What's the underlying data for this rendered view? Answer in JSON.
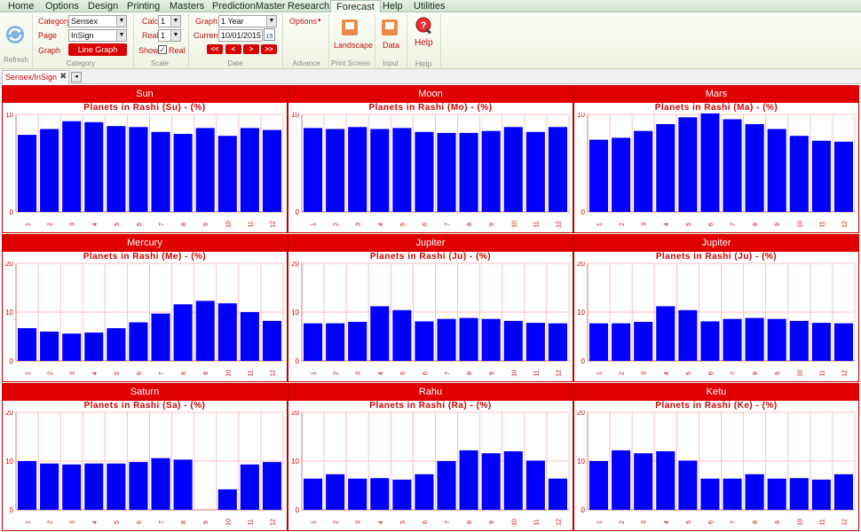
{
  "menu": {
    "items": [
      "Home",
      "Options",
      "Design",
      "Printing",
      "Masters",
      "PredictionMaster",
      "Research",
      "Forecast",
      "Help",
      "Utilities"
    ],
    "active": "Forecast"
  },
  "ribbon": {
    "refresh_label": "Refresh",
    "category": {
      "category_label": "Category",
      "category_value": "Sensex",
      "page_label": "Page",
      "page_value": "InSign",
      "graph_label": "Graph",
      "graph_button": "Line Graph",
      "group_label": "Category"
    },
    "scale": {
      "calc_label": "Calc",
      "calc_value": "1",
      "real_label": "Real",
      "real_value": "1",
      "show_label": "Show",
      "show_real_label": "Real",
      "group_label": "Scale"
    },
    "date": {
      "graph_label": "Graph",
      "graph_value": "1 Year",
      "current_label": "Current",
      "current_value": "10/01/2015",
      "calendar_day": "15",
      "nav": [
        "<<",
        "<",
        ">",
        ">>"
      ],
      "group_label": "Date"
    },
    "advance": {
      "options_label": "Options",
      "group_label": "Advance"
    },
    "print_screen": {
      "button_label": "Landscape",
      "group_label": "Print Screen"
    },
    "input": {
      "button_label": "Data",
      "group_label": "Input"
    },
    "help": {
      "button_label": "Help",
      "group_label": "Help"
    }
  },
  "tabstrip": {
    "tab_label": "Sensex/InSign"
  },
  "colors": {
    "bar": "#0000ff",
    "header_red": "#e10000",
    "grid_pink": "#ffc0c0",
    "tick_red": "#d00000"
  },
  "panels": [
    {
      "title": "Sun",
      "subtitle": "Planets in Rashi (Su) -  (%)"
    },
    {
      "title": "Moon",
      "subtitle": "Planets in Rashi (Mo) -  (%)"
    },
    {
      "title": "Mars",
      "subtitle": "Planets in Rashi (Ma) -  (%)"
    },
    {
      "title": "Mercury",
      "subtitle": "Planets in Rashi (Me) -  (%)"
    },
    {
      "title": "Jupiter",
      "subtitle": "Planets in Rashi (Ju) -  (%)"
    },
    {
      "title": "Jupiter",
      "subtitle": "Planets in Rashi (Ju) -  (%)"
    },
    {
      "title": "Saturn",
      "subtitle": "Planets in Rashi (Sa) -  (%)"
    },
    {
      "title": "Rahu",
      "subtitle": "Planets in Rashi (Ra) -  (%)"
    },
    {
      "title": "Ketu",
      "subtitle": "Planets in Rashi (Ke) -  (%)"
    }
  ],
  "chart_data": [
    {
      "type": "bar",
      "title": "Planets in Rashi (Su) -  (%)",
      "categories": [
        "1",
        "2",
        "3",
        "4",
        "5",
        "6",
        "7",
        "8",
        "9",
        "10",
        "11",
        "12"
      ],
      "values": [
        7.9,
        8.5,
        9.3,
        9.2,
        8.8,
        8.7,
        8.2,
        8.0,
        8.6,
        7.8,
        8.6,
        8.4
      ],
      "ylim": [
        0,
        10
      ],
      "yticks": [
        0,
        10
      ],
      "grid": true
    },
    {
      "type": "bar",
      "title": "Planets in Rashi (Mo) -  (%)",
      "categories": [
        "1",
        "2",
        "3",
        "4",
        "5",
        "6",
        "7",
        "8",
        "9",
        "10",
        "11",
        "12"
      ],
      "values": [
        8.6,
        8.5,
        8.7,
        8.5,
        8.6,
        8.2,
        8.1,
        8.1,
        8.3,
        8.7,
        8.2,
        8.7
      ],
      "ylim": [
        0,
        10
      ],
      "yticks": [
        0,
        10
      ],
      "grid": true
    },
    {
      "type": "bar",
      "title": "Planets in Rashi (Ma) -  (%)",
      "categories": [
        "1",
        "2",
        "3",
        "4",
        "5",
        "6",
        "7",
        "8",
        "9",
        "10",
        "11",
        "12"
      ],
      "values": [
        7.4,
        7.6,
        8.3,
        9.0,
        9.7,
        10.1,
        9.5,
        9.0,
        8.5,
        7.8,
        7.3,
        7.2
      ],
      "ylim": [
        0,
        10
      ],
      "yticks": [
        0,
        10
      ],
      "grid": true
    },
    {
      "type": "bar",
      "title": "Planets in Rashi (Me) -  (%)",
      "categories": [
        "1",
        "2",
        "3",
        "4",
        "5",
        "6",
        "7",
        "8",
        "9",
        "10",
        "11",
        "12"
      ],
      "values": [
        6.7,
        6.0,
        5.6,
        5.8,
        6.7,
        7.9,
        9.7,
        11.6,
        12.3,
        11.8,
        10.0,
        8.2
      ],
      "ylim": [
        0,
        20
      ],
      "yticks": [
        0,
        10,
        20
      ],
      "grid": true
    },
    {
      "type": "bar",
      "title": "Planets in Rashi (Ju) -  (%)",
      "categories": [
        "1",
        "2",
        "3",
        "4",
        "5",
        "6",
        "7",
        "8",
        "9",
        "10",
        "11",
        "12"
      ],
      "values": [
        7.7,
        7.7,
        8.0,
        11.2,
        10.4,
        8.1,
        8.6,
        8.8,
        8.6,
        8.2,
        7.8,
        7.7
      ],
      "ylim": [
        0,
        20
      ],
      "yticks": [
        0,
        10,
        20
      ],
      "grid": true
    },
    {
      "type": "bar",
      "title": "Planets in Rashi (Ju) -  (%)",
      "categories": [
        "1",
        "2",
        "3",
        "4",
        "5",
        "6",
        "7",
        "8",
        "9",
        "10",
        "11",
        "12"
      ],
      "values": [
        7.7,
        7.7,
        8.0,
        11.2,
        10.4,
        8.1,
        8.6,
        8.8,
        8.6,
        8.2,
        7.8,
        7.7
      ],
      "ylim": [
        0,
        20
      ],
      "yticks": [
        0,
        10,
        20
      ],
      "grid": true
    },
    {
      "type": "bar",
      "title": "Planets in Rashi (Sa) -  (%)",
      "categories": [
        "1",
        "2",
        "3",
        "4",
        "5",
        "6",
        "7",
        "8",
        "9",
        "10",
        "11",
        "12"
      ],
      "values": [
        10.0,
        9.5,
        9.3,
        9.5,
        9.5,
        9.8,
        10.6,
        10.3,
        0,
        4.2,
        9.3,
        9.8
      ],
      "ylim": [
        0,
        20
      ],
      "yticks": [
        0,
        10,
        20
      ],
      "grid": true
    },
    {
      "type": "bar",
      "title": "Planets in Rashi (Ra) -  (%)",
      "categories": [
        "1",
        "2",
        "3",
        "4",
        "5",
        "6",
        "7",
        "8",
        "9",
        "10",
        "11",
        "12"
      ],
      "values": [
        6.4,
        7.3,
        6.4,
        6.5,
        6.2,
        7.3,
        10.0,
        12.2,
        11.6,
        12.0,
        10.1,
        6.4
      ],
      "ylim": [
        0,
        20
      ],
      "yticks": [
        0,
        10,
        20
      ],
      "grid": true
    },
    {
      "type": "bar",
      "title": "Planets in Rashi (Ke) -  (%)",
      "categories": [
        "1",
        "2",
        "3",
        "4",
        "5",
        "6",
        "7",
        "8",
        "9",
        "10",
        "11",
        "12"
      ],
      "values": [
        10.0,
        12.2,
        11.6,
        12.0,
        10.1,
        6.4,
        6.4,
        7.3,
        6.4,
        6.5,
        6.2,
        7.3
      ],
      "ylim": [
        0,
        20
      ],
      "yticks": [
        0,
        10,
        20
      ],
      "grid": true
    }
  ]
}
